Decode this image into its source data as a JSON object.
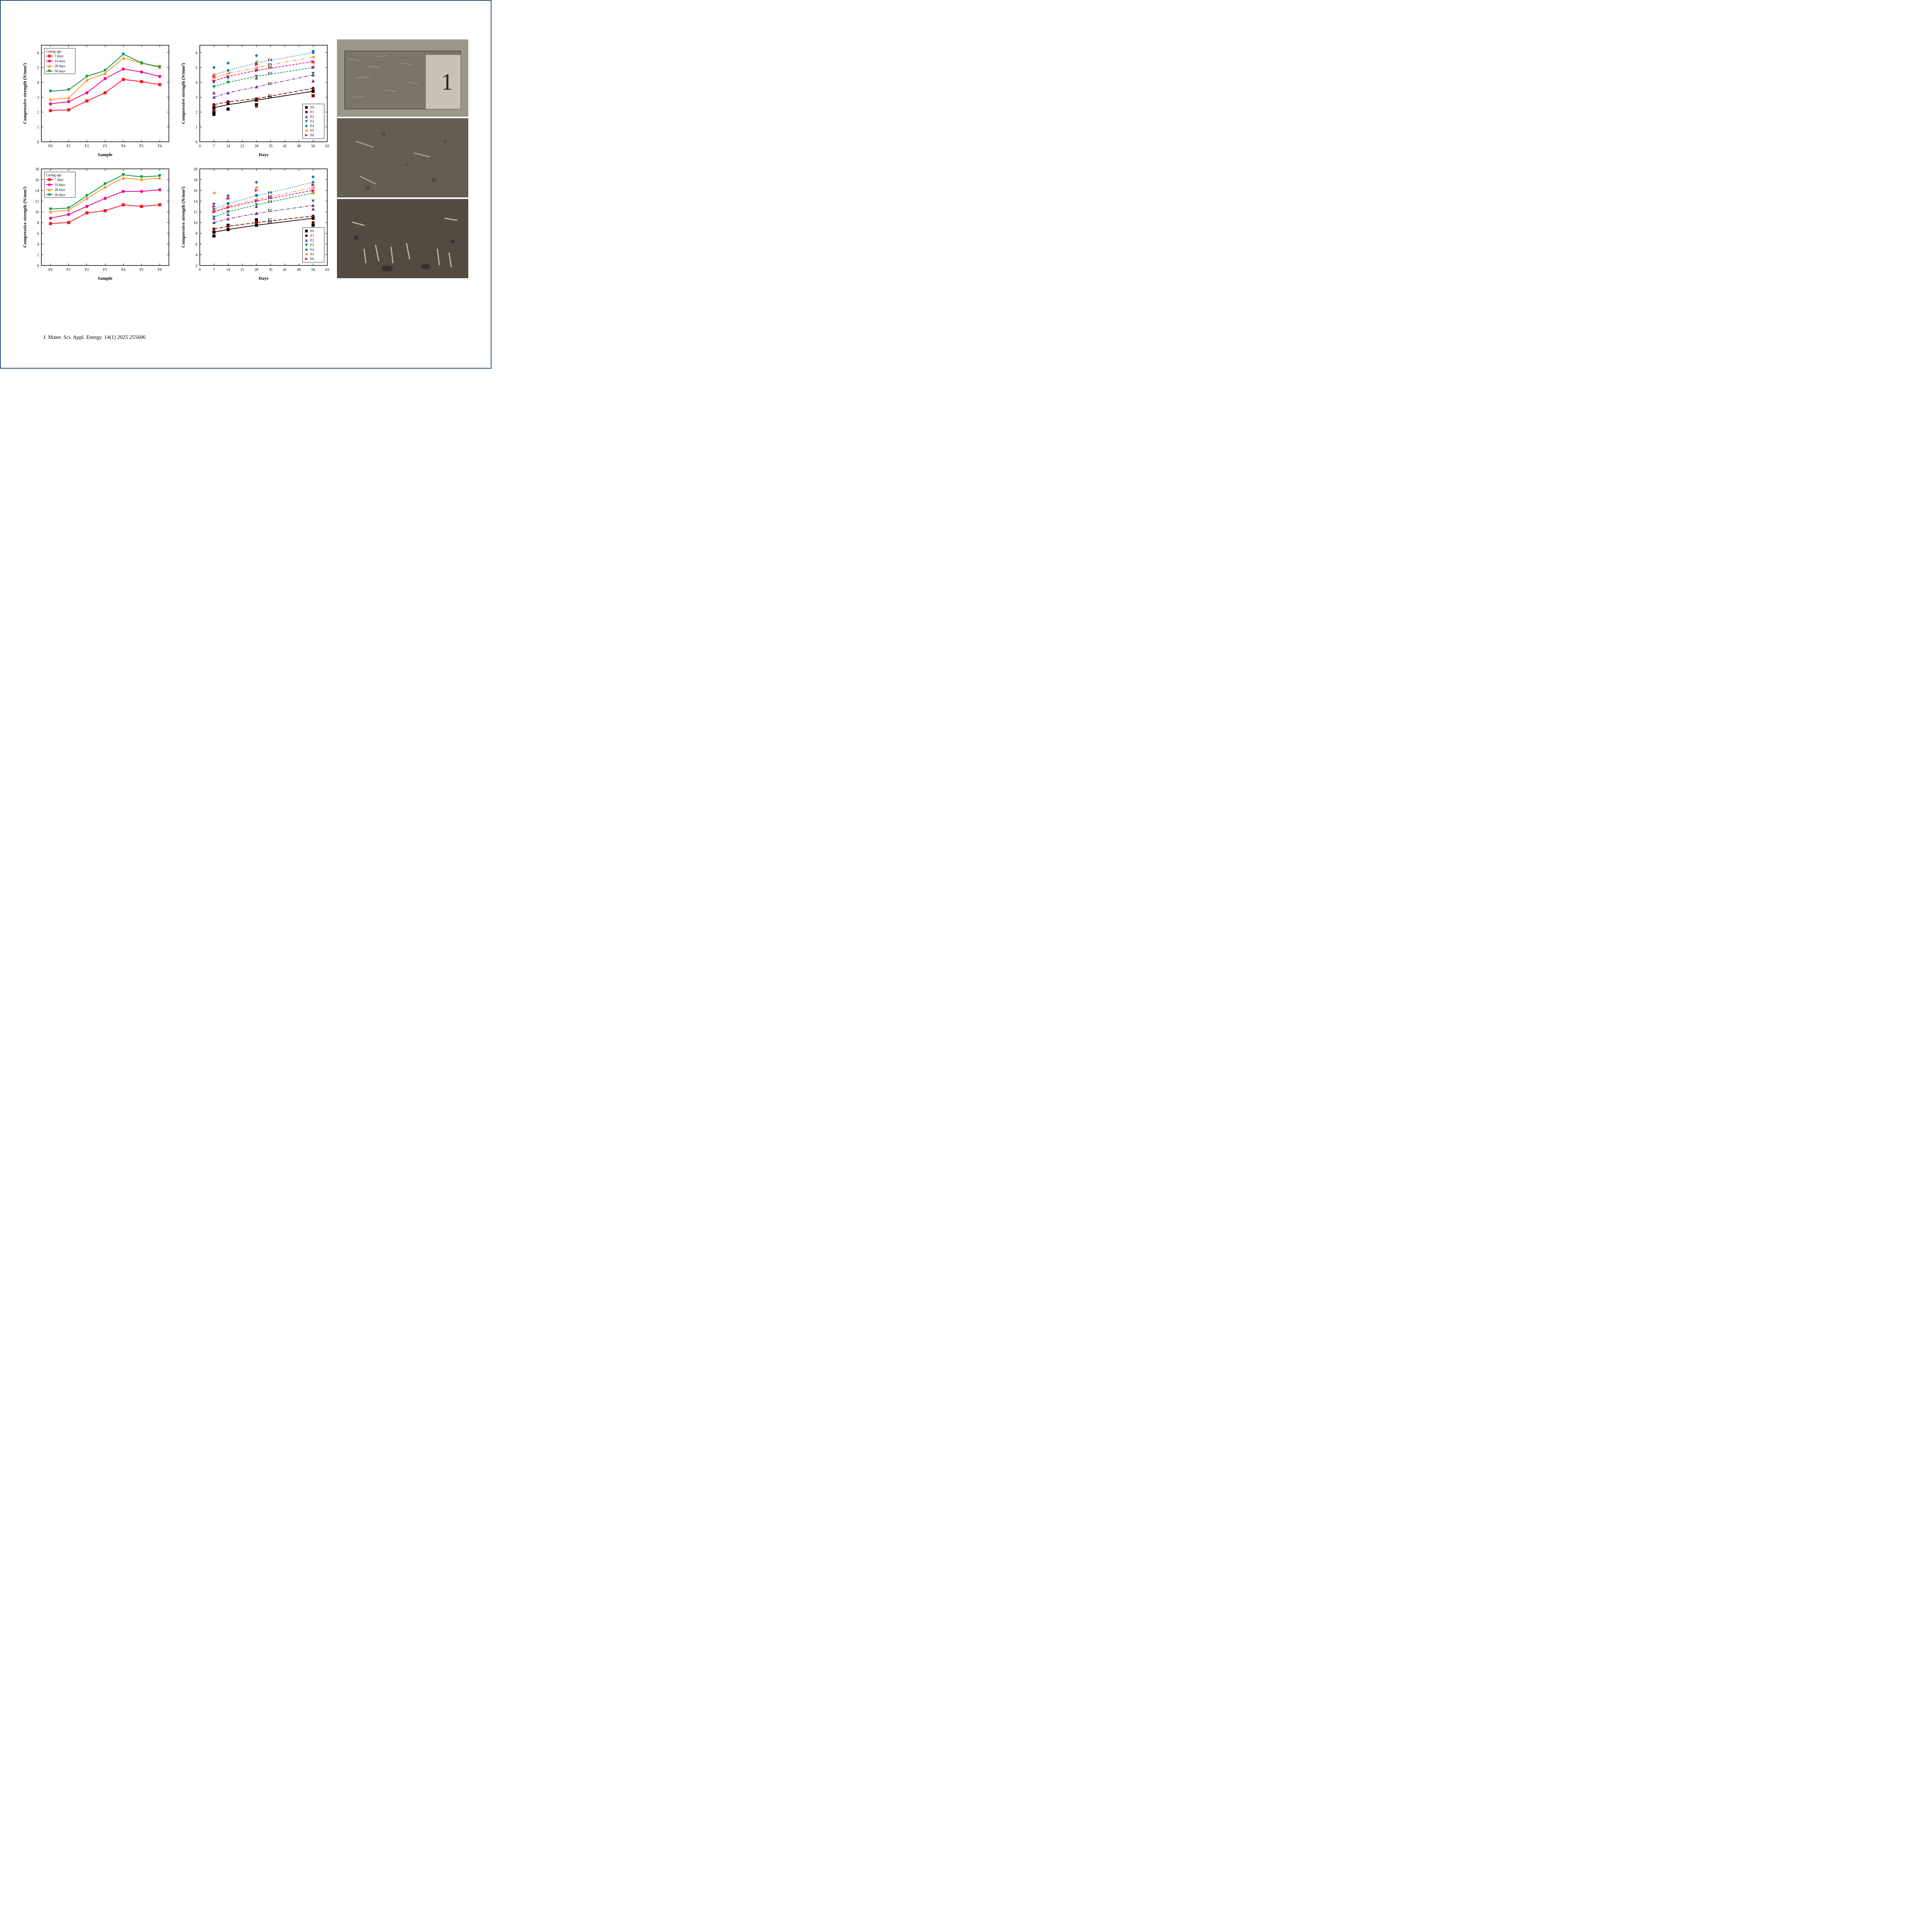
{
  "citation": "J. Mater. Sci. Appl. Energy. 14(1) 2025 255606",
  "chart_top_left": {
    "type": "line",
    "title": "",
    "xlabel": "Sample",
    "ylabel": "Compressive strength (N/mm²)",
    "xlabel_fontsize": 12,
    "ylabel_fontsize": 12,
    "tick_fontsize": 10,
    "categories": [
      "F0",
      "F1",
      "F2",
      "F3",
      "F4",
      "F5",
      "F6"
    ],
    "ylim": [
      0,
      6.5
    ],
    "ytick_step": 1,
    "legend_title": "Curing age",
    "legend_position": "top-left",
    "background_color": "#ffffff",
    "axis_color": "#000000",
    "series": [
      {
        "name": "7 days",
        "color": "#ed1c24",
        "marker": "square",
        "values": [
          2.1,
          2.15,
          2.75,
          3.3,
          4.2,
          4.05,
          3.85
        ],
        "linewidth": 2
      },
      {
        "name": "14 days",
        "color": "#ec008c",
        "marker": "circle",
        "values": [
          2.55,
          2.7,
          3.3,
          4.25,
          4.9,
          4.7,
          4.4
        ],
        "linewidth": 2
      },
      {
        "name": "28 days",
        "color": "#f7941d",
        "marker": "triangle-up",
        "values": [
          2.85,
          2.95,
          4.15,
          4.6,
          5.65,
          5.3,
          5.0
        ],
        "linewidth": 2
      },
      {
        "name": "56 days",
        "color": "#009444",
        "marker": "triangle-down",
        "values": [
          3.4,
          3.5,
          4.4,
          4.8,
          5.9,
          5.3,
          5.05
        ],
        "linewidth": 2
      }
    ]
  },
  "chart_top_right": {
    "type": "scatter-line",
    "title": "",
    "xlabel": "Days",
    "ylabel": "Compressive strength (N/mm²)",
    "xlabel_fontsize": 12,
    "ylabel_fontsize": 12,
    "tick_fontsize": 10,
    "xlim": [
      0,
      63
    ],
    "xtick_step": 7,
    "ylim": [
      0,
      6.5
    ],
    "ytick_step": 1,
    "legend_position": "bottom-right",
    "background_color": "#ffffff",
    "axis_color": "#000000",
    "x_values": [
      7,
      14,
      28,
      56
    ],
    "series": [
      {
        "name": "F0",
        "color": "#000000",
        "marker": "square",
        "dash": "solid",
        "trend": [
          2.3,
          2.5,
          2.8,
          3.4
        ],
        "scatter": [
          [
            7,
            2.3
          ],
          [
            7,
            2.0
          ],
          [
            7,
            1.85
          ],
          [
            14,
            2.2
          ],
          [
            14,
            2.6
          ],
          [
            28,
            2.8
          ],
          [
            28,
            2.5
          ],
          [
            56,
            3.4
          ],
          [
            56,
            3.1
          ]
        ]
      },
      {
        "name": "F1",
        "color": "#8b0000",
        "marker": "circle",
        "dash": "long-dash",
        "trend": [
          2.5,
          2.7,
          2.9,
          3.6
        ],
        "scatter": [
          [
            7,
            2.5
          ],
          [
            7,
            2.1
          ],
          [
            14,
            2.7
          ],
          [
            28,
            2.9
          ],
          [
            28,
            2.4
          ],
          [
            56,
            3.6
          ],
          [
            56,
            3.1
          ]
        ]
      },
      {
        "name": "F2",
        "color": "#7030a0",
        "marker": "triangle-up",
        "dash": "dash-dot",
        "trend": [
          3.0,
          3.3,
          3.7,
          4.5
        ],
        "scatter": [
          [
            7,
            3.0
          ],
          [
            7,
            3.3
          ],
          [
            14,
            3.3
          ],
          [
            28,
            3.7
          ],
          [
            28,
            4.3
          ],
          [
            56,
            4.5
          ],
          [
            56,
            4.1
          ]
        ]
      },
      {
        "name": "F3",
        "color": "#009444",
        "marker": "triangle-down",
        "dash": "short-dash",
        "trend": [
          3.7,
          4.0,
          4.4,
          5.0
        ],
        "scatter": [
          [
            7,
            3.7
          ],
          [
            7,
            4.0
          ],
          [
            14,
            4.0
          ],
          [
            14,
            4.3
          ],
          [
            28,
            4.4
          ],
          [
            28,
            4.8
          ],
          [
            56,
            5.0
          ],
          [
            56,
            4.6
          ]
        ]
      },
      {
        "name": "F4",
        "color": "#0070c0",
        "marker": "diamond",
        "dash": "dot",
        "trend": [
          4.5,
          4.8,
          5.3,
          6.0
        ],
        "scatter": [
          [
            7,
            4.5
          ],
          [
            7,
            5.0
          ],
          [
            14,
            4.8
          ],
          [
            14,
            5.3
          ],
          [
            28,
            5.3
          ],
          [
            28,
            5.8
          ],
          [
            56,
            6.0
          ],
          [
            56,
            6.1
          ]
        ]
      },
      {
        "name": "F5",
        "color": "#f7941d",
        "marker": "triangle-left",
        "dash": "dash-dot-dot",
        "trend": [
          4.3,
          4.6,
          5.0,
          5.7
        ],
        "scatter": [
          [
            7,
            4.3
          ],
          [
            7,
            4.5
          ],
          [
            14,
            4.6
          ],
          [
            28,
            5.0
          ],
          [
            28,
            5.4
          ],
          [
            56,
            5.7
          ],
          [
            56,
            5.3
          ]
        ]
      },
      {
        "name": "F6",
        "color": "#ec008c",
        "marker": "triangle-right",
        "dash": "medium-dash",
        "trend": [
          4.1,
          4.4,
          4.8,
          5.4
        ],
        "scatter": [
          [
            7,
            4.1
          ],
          [
            7,
            4.4
          ],
          [
            14,
            4.4
          ],
          [
            28,
            4.8
          ],
          [
            28,
            5.2
          ],
          [
            56,
            5.4
          ],
          [
            56,
            5.0
          ]
        ]
      }
    ],
    "series_labels_inline": [
      "F0",
      "F1",
      "F2",
      "F3",
      "F4",
      "F5",
      "F6"
    ]
  },
  "chart_bottom_left": {
    "type": "line",
    "title": "",
    "xlabel": "Sample",
    "ylabel": "Compressive strength (N/mm²)",
    "xlabel_fontsize": 12,
    "ylabel_fontsize": 12,
    "tick_fontsize": 10,
    "categories": [
      "F0",
      "F1",
      "F2",
      "F3",
      "F4",
      "F5",
      "F6"
    ],
    "ylim": [
      0,
      18
    ],
    "ytick_step": 2,
    "legend_title": "Curing age",
    "legend_position": "top-left",
    "background_color": "#ffffff",
    "axis_color": "#000000",
    "series": [
      {
        "name": "7 days",
        "color": "#ed1c24",
        "marker": "square",
        "values": [
          7.8,
          8.0,
          9.8,
          10.2,
          11.3,
          11.0,
          11.3
        ],
        "linewidth": 2
      },
      {
        "name": "14 days",
        "color": "#ec008c",
        "marker": "circle",
        "values": [
          8.8,
          9.5,
          11.0,
          12.5,
          13.8,
          13.8,
          14.1
        ],
        "linewidth": 2
      },
      {
        "name": "28 days",
        "color": "#f7941d",
        "marker": "triangle-up",
        "values": [
          10.0,
          10.3,
          12.5,
          14.6,
          16.3,
          16.0,
          16.3
        ],
        "linewidth": 2
      },
      {
        "name": "56 days",
        "color": "#009444",
        "marker": "triangle-down",
        "values": [
          10.5,
          10.7,
          13.0,
          15.2,
          16.9,
          16.5,
          16.7
        ],
        "linewidth": 2
      }
    ]
  },
  "chart_bottom_right": {
    "type": "scatter-line",
    "title": "",
    "xlabel": "Days",
    "ylabel": "Compressive strength (N/mm²)",
    "xlabel_fontsize": 12,
    "ylabel_fontsize": 12,
    "tick_fontsize": 10,
    "xlim": [
      0,
      63
    ],
    "xtick_step": 7,
    "ylim": [
      2,
      20
    ],
    "ytick_step": 2,
    "legend_position": "bottom-right",
    "background_color": "#ffffff",
    "axis_color": "#000000",
    "x_values": [
      7,
      14,
      28,
      56
    ],
    "series": [
      {
        "name": "F0",
        "color": "#000000",
        "marker": "square",
        "dash": "solid",
        "trend": [
          8.2,
          8.7,
          9.5,
          10.8
        ],
        "scatter": [
          [
            7,
            8.2
          ],
          [
            7,
            7.5
          ],
          [
            14,
            8.7
          ],
          [
            14,
            9.5
          ],
          [
            28,
            9.5
          ],
          [
            28,
            10.5
          ],
          [
            56,
            10.8
          ],
          [
            56,
            9.5
          ]
        ]
      },
      {
        "name": "F1",
        "color": "#8b0000",
        "marker": "circle",
        "dash": "long-dash",
        "trend": [
          8.8,
          9.3,
          10.0,
          11.2
        ],
        "scatter": [
          [
            7,
            8.8
          ],
          [
            14,
            9.3
          ],
          [
            28,
            10.0
          ],
          [
            56,
            11.2
          ],
          [
            56,
            10.0
          ]
        ]
      },
      {
        "name": "F2",
        "color": "#7030a0",
        "marker": "triangle-up",
        "dash": "dash-dot",
        "trend": [
          10.0,
          10.7,
          11.7,
          13.2
        ],
        "scatter": [
          [
            7,
            10.0
          ],
          [
            7,
            10.8
          ],
          [
            14,
            10.7
          ],
          [
            14,
            11.5
          ],
          [
            28,
            11.7
          ],
          [
            28,
            13.0
          ],
          [
            56,
            13.2
          ],
          [
            56,
            12.5
          ]
        ]
      },
      {
        "name": "F3",
        "color": "#009444",
        "marker": "triangle-down",
        "dash": "short-dash",
        "trend": [
          11.0,
          12.0,
          13.3,
          15.5
        ],
        "scatter": [
          [
            7,
            11.0
          ],
          [
            7,
            12.0
          ],
          [
            14,
            12.0
          ],
          [
            14,
            13.5
          ],
          [
            28,
            13.3
          ],
          [
            28,
            15.0
          ],
          [
            56,
            15.5
          ],
          [
            56,
            14.0
          ]
        ]
      },
      {
        "name": "F4",
        "color": "#0070c0",
        "marker": "diamond",
        "dash": "dot",
        "trend": [
          12.5,
          13.5,
          15.0,
          17.5
        ],
        "scatter": [
          [
            7,
            12.5
          ],
          [
            7,
            13.5
          ],
          [
            14,
            13.5
          ],
          [
            14,
            15.0
          ],
          [
            28,
            15.0
          ],
          [
            28,
            17.5
          ],
          [
            56,
            17.5
          ],
          [
            56,
            18.5
          ]
        ]
      },
      {
        "name": "F5",
        "color": "#f7941d",
        "marker": "triangle-left",
        "dash": "dash-dot-dot",
        "trend": [
          12.2,
          13.0,
          14.3,
          16.5
        ],
        "scatter": [
          [
            7,
            12.2
          ],
          [
            7,
            15.5
          ],
          [
            14,
            13.0
          ],
          [
            14,
            14.5
          ],
          [
            28,
            14.3
          ],
          [
            28,
            16.5
          ],
          [
            56,
            16.5
          ],
          [
            56,
            15.5
          ]
        ]
      },
      {
        "name": "F6",
        "color": "#ec008c",
        "marker": "triangle-right",
        "dash": "medium-dash",
        "trend": [
          12.0,
          12.8,
          14.0,
          16.0
        ],
        "scatter": [
          [
            7,
            12.0
          ],
          [
            7,
            13.0
          ],
          [
            14,
            12.8
          ],
          [
            14,
            14.5
          ],
          [
            28,
            14.0
          ],
          [
            28,
            16.0
          ],
          [
            56,
            16.0
          ],
          [
            56,
            17.0
          ]
        ]
      }
    ],
    "series_labels_inline": [
      "F0",
      "F1",
      "F2",
      "F3",
      "F4",
      "F5",
      "F6"
    ]
  },
  "photos": {
    "photo1_label": "1",
    "photo1_desc": "concrete-cube-sample",
    "photo2_desc": "fiber-surface-detail",
    "photo3_desc": "fiber-fracture-surface"
  }
}
